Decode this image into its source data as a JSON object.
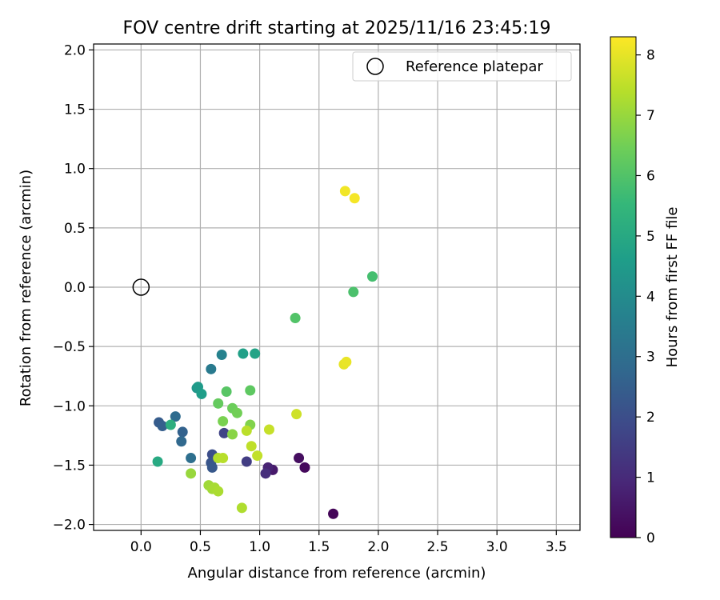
{
  "chart_data": {
    "type": "scatter",
    "title": "FOV centre drift starting at 2025/11/16 23:45:19",
    "xlabel": "Angular distance from reference (arcmin)",
    "ylabel": "Rotation from reference (arcmin)",
    "xlim": [
      -0.4,
      3.7
    ],
    "ylim": [
      -2.05,
      2.05
    ],
    "xticks": [
      0.0,
      0.5,
      1.0,
      1.5,
      2.0,
      2.5,
      3.0,
      3.5
    ],
    "xtick_labels": [
      "0.0",
      "0.5",
      "1.0",
      "1.5",
      "2.0",
      "2.5",
      "3.0",
      "3.5"
    ],
    "yticks": [
      2.0,
      1.5,
      1.0,
      0.5,
      0.0,
      -0.5,
      -1.0,
      -1.5,
      -2.0
    ],
    "ytick_labels": [
      "2.0",
      "1.5",
      "1.0",
      "0.5",
      "0.0",
      "−0.5",
      "−1.0",
      "−1.5",
      "−2.0"
    ],
    "grid": true,
    "legend": {
      "position": "top-right",
      "entries": [
        {
          "label": "Reference platepar",
          "marker": "open-circle"
        }
      ]
    },
    "reference": {
      "x": 0.0,
      "y": 0.0
    },
    "colorbar": {
      "label": "Hours from first FF file",
      "min": 0,
      "max": 8.3,
      "ticks": [
        0,
        1,
        2,
        3,
        4,
        5,
        6,
        7,
        8
      ],
      "tick_labels": [
        "0",
        "1",
        "2",
        "3",
        "4",
        "5",
        "6",
        "7",
        "8"
      ],
      "colormap": "viridis",
      "stops": [
        "#440154",
        "#482878",
        "#3e4989",
        "#31688e",
        "#26828e",
        "#1f9e89",
        "#35b779",
        "#6ece58",
        "#b5de2b",
        "#fde725"
      ]
    },
    "series": [
      {
        "name": "FOV centre",
        "points": [
          {
            "x": 1.62,
            "y": -1.91,
            "hours": 0.1
          },
          {
            "x": 1.38,
            "y": -1.52,
            "hours": 0.2
          },
          {
            "x": 1.33,
            "y": -1.44,
            "hours": 0.3
          },
          {
            "x": 1.11,
            "y": -1.54,
            "hours": 0.6
          },
          {
            "x": 1.07,
            "y": -1.52,
            "hours": 0.8
          },
          {
            "x": 1.05,
            "y": -1.57,
            "hours": 1.1
          },
          {
            "x": 0.89,
            "y": -1.47,
            "hours": 1.5
          },
          {
            "x": 0.7,
            "y": -1.23,
            "hours": 1.7
          },
          {
            "x": 0.6,
            "y": -1.41,
            "hours": 2.0
          },
          {
            "x": 0.59,
            "y": -1.48,
            "hours": 2.2
          },
          {
            "x": 0.6,
            "y": -1.52,
            "hours": 2.3
          },
          {
            "x": 0.15,
            "y": -1.14,
            "hours": 2.4
          },
          {
            "x": 0.18,
            "y": -1.17,
            "hours": 2.5
          },
          {
            "x": 0.35,
            "y": -1.22,
            "hours": 2.6
          },
          {
            "x": 0.34,
            "y": -1.3,
            "hours": 2.8
          },
          {
            "x": 0.29,
            "y": -1.09,
            "hours": 2.9
          },
          {
            "x": 0.42,
            "y": -1.44,
            "hours": 3.0
          },
          {
            "x": 0.59,
            "y": -0.69,
            "hours": 3.4
          },
          {
            "x": 0.68,
            "y": -0.57,
            "hours": 3.7
          },
          {
            "x": 0.47,
            "y": -0.85,
            "hours": 4.3
          },
          {
            "x": 0.48,
            "y": -0.84,
            "hours": 4.5
          },
          {
            "x": 0.51,
            "y": -0.9,
            "hours": 4.6
          },
          {
            "x": 0.86,
            "y": -0.56,
            "hours": 4.7
          },
          {
            "x": 0.96,
            "y": -0.56,
            "hours": 4.8
          },
          {
            "x": 0.14,
            "y": -1.47,
            "hours": 5.0
          },
          {
            "x": 0.25,
            "y": -1.16,
            "hours": 5.2
          },
          {
            "x": 1.95,
            "y": 0.09,
            "hours": 5.8
          },
          {
            "x": 1.79,
            "y": -0.04,
            "hours": 5.9
          },
          {
            "x": 1.3,
            "y": -0.26,
            "hours": 6.0
          },
          {
            "x": 0.72,
            "y": -0.88,
            "hours": 6.1
          },
          {
            "x": 0.92,
            "y": -0.87,
            "hours": 6.2
          },
          {
            "x": 0.65,
            "y": -0.98,
            "hours": 6.3
          },
          {
            "x": 0.77,
            "y": -1.02,
            "hours": 6.4
          },
          {
            "x": 0.81,
            "y": -1.06,
            "hours": 6.5
          },
          {
            "x": 0.69,
            "y": -1.13,
            "hours": 6.6
          },
          {
            "x": 0.92,
            "y": -1.16,
            "hours": 6.7
          },
          {
            "x": 0.77,
            "y": -1.24,
            "hours": 6.8
          },
          {
            "x": 0.42,
            "y": -1.57,
            "hours": 7.0
          },
          {
            "x": 0.57,
            "y": -1.67,
            "hours": 7.1
          },
          {
            "x": 0.6,
            "y": -1.7,
            "hours": 7.15
          },
          {
            "x": 0.62,
            "y": -1.69,
            "hours": 7.2
          },
          {
            "x": 0.65,
            "y": -1.72,
            "hours": 7.25
          },
          {
            "x": 0.85,
            "y": -1.86,
            "hours": 7.3
          },
          {
            "x": 0.65,
            "y": -1.44,
            "hours": 7.35
          },
          {
            "x": 0.69,
            "y": -1.44,
            "hours": 7.4
          },
          {
            "x": 0.89,
            "y": -1.21,
            "hours": 7.45
          },
          {
            "x": 0.93,
            "y": -1.34,
            "hours": 7.5
          },
          {
            "x": 0.98,
            "y": -1.42,
            "hours": 7.55
          },
          {
            "x": 1.08,
            "y": -1.2,
            "hours": 7.6
          },
          {
            "x": 1.31,
            "y": -1.07,
            "hours": 7.7
          },
          {
            "x": 1.71,
            "y": -0.65,
            "hours": 8.0
          },
          {
            "x": 1.73,
            "y": -0.63,
            "hours": 8.05
          },
          {
            "x": 1.72,
            "y": 0.81,
            "hours": 8.15
          },
          {
            "x": 1.8,
            "y": 0.75,
            "hours": 8.2
          }
        ]
      }
    ]
  }
}
